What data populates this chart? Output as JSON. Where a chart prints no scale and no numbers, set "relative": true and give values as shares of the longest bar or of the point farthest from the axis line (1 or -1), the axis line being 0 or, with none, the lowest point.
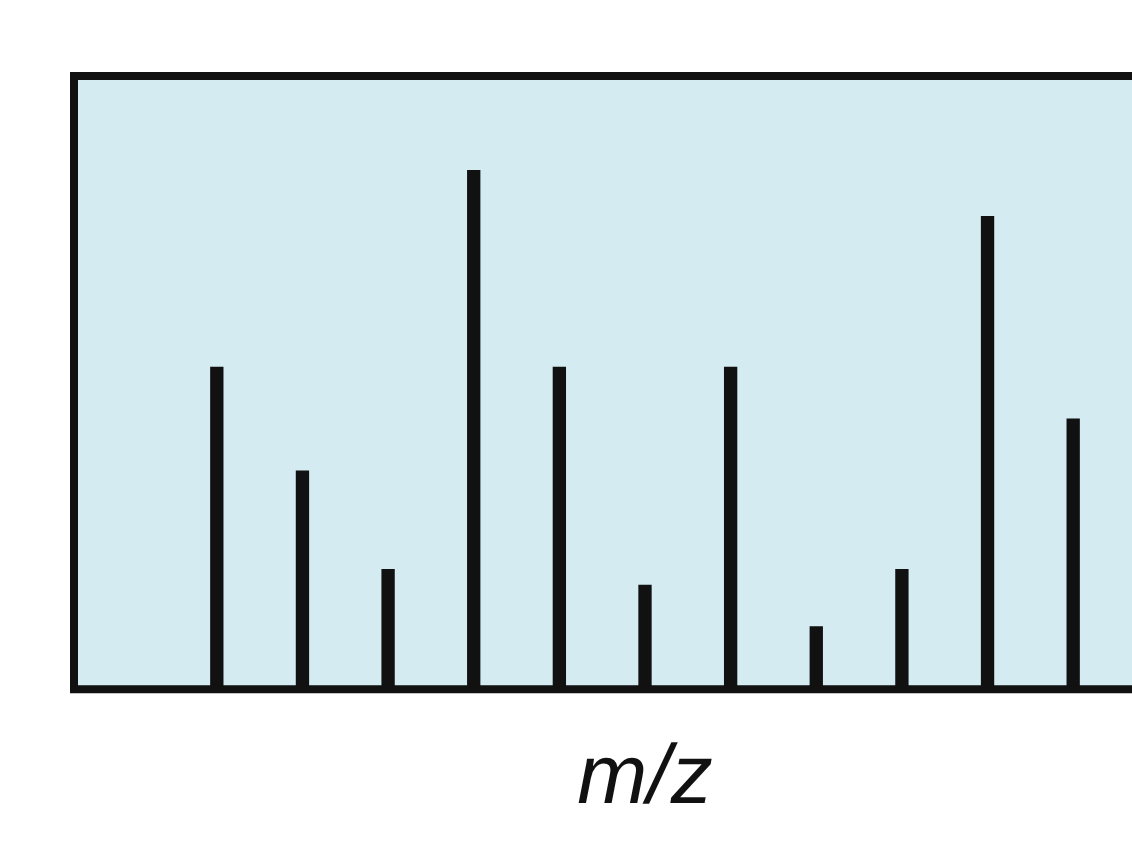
{
  "chart_data": {
    "type": "bar",
    "relative": true,
    "xlabel": "m/z",
    "color": "#111111",
    "categories": [
      null,
      null,
      null,
      null,
      null,
      null,
      null,
      null,
      null,
      null,
      null
    ],
    "values": [
      0.62,
      0.42,
      0.23,
      1,
      0.62,
      0.2,
      0.62,
      0.12,
      0.23,
      0.91,
      0.52
    ]
  }
}
